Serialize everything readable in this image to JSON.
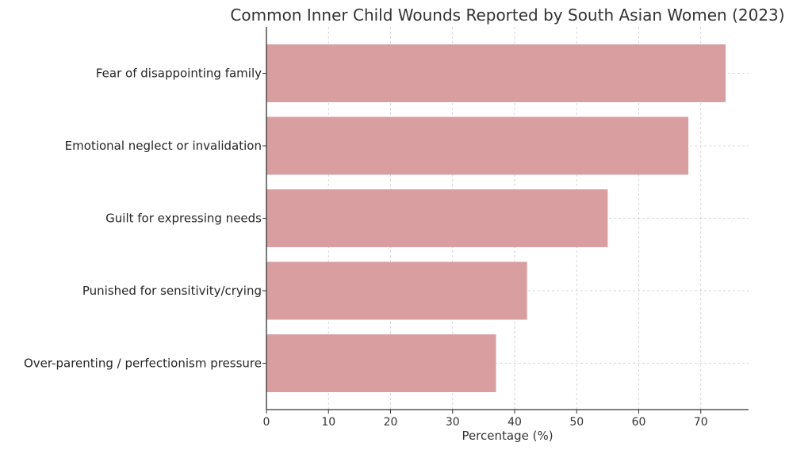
{
  "chart_data": {
    "type": "bar",
    "orientation": "horizontal",
    "title": "Common Inner Child Wounds Reported by South Asian Women (2023)",
    "xlabel": "Percentage (%)",
    "ylabel": "",
    "categories": [
      "Fear of disappointing family",
      "Emotional neglect or invalidation",
      "Guilt for expressing needs",
      "Punished for sensitivity/crying",
      "Over-parenting / perfectionism pressure"
    ],
    "values": [
      74,
      68,
      55,
      42,
      37
    ],
    "xlim": [
      0,
      77.7
    ],
    "xticks": [
      "0",
      "10",
      "20",
      "30",
      "40",
      "50",
      "60",
      "70"
    ],
    "grid": true,
    "bar_color": "#d89ea0",
    "grid_color": "#cccccc"
  }
}
